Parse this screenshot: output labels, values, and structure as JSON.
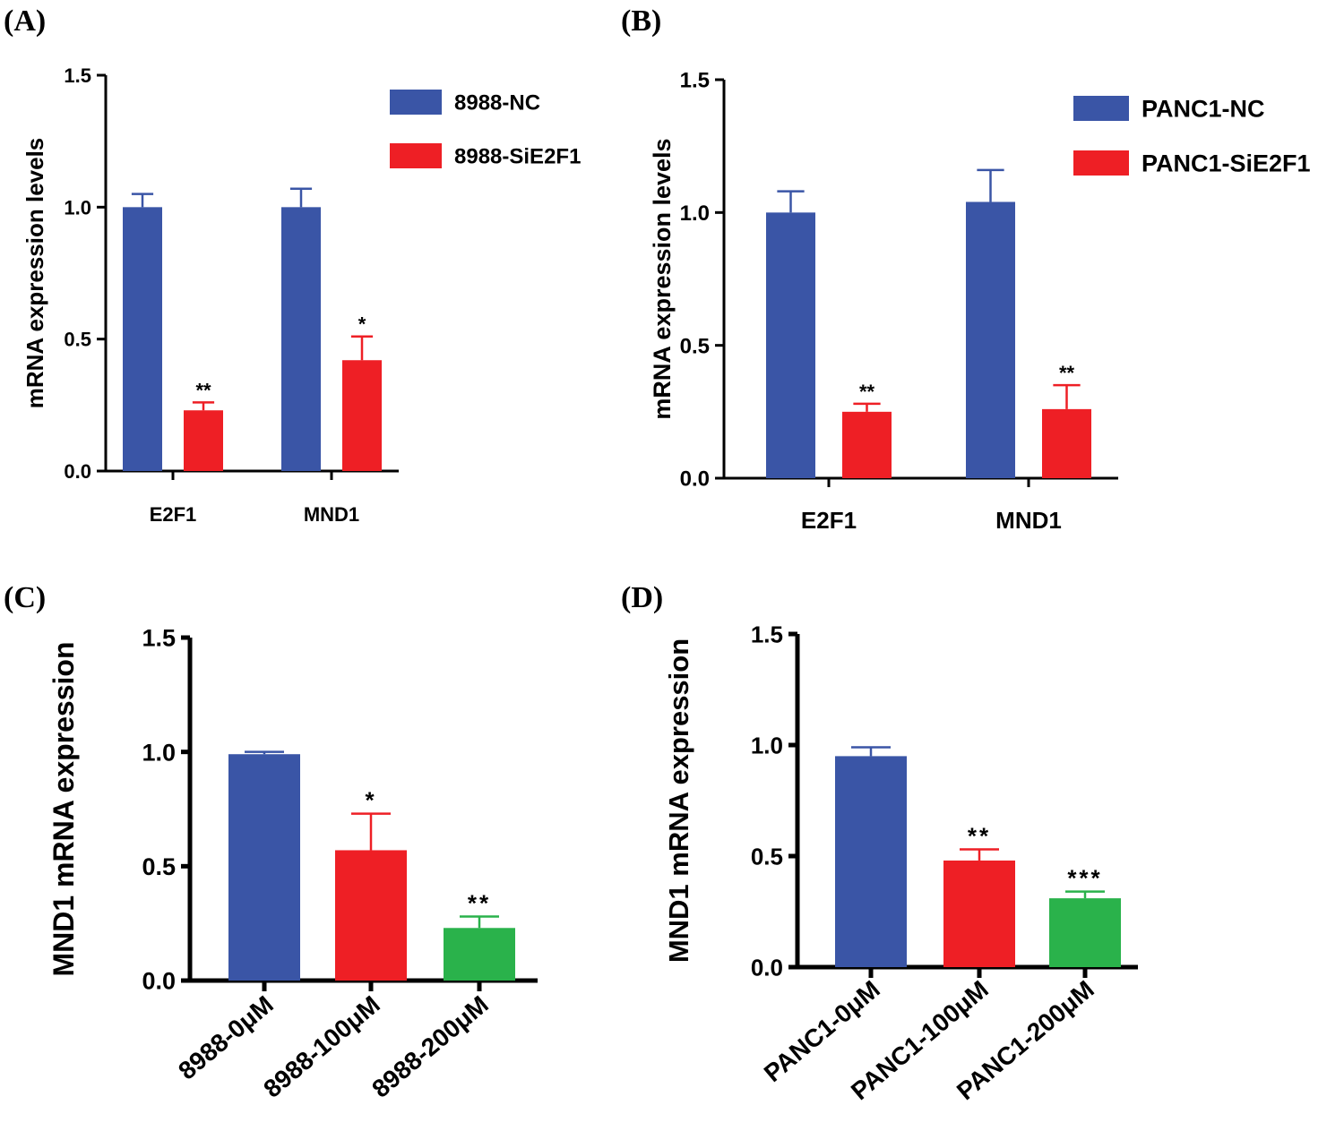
{
  "chart_data": [
    {
      "panel": "(A)",
      "type": "bar",
      "categories": [
        "E2F1",
        "MND1"
      ],
      "series": [
        {
          "name": "8988-NC",
          "color": "#3a55a6",
          "values": [
            1.0,
            1.0
          ],
          "errors": [
            0.05,
            0.07
          ]
        },
        {
          "name": "8988-SiE2F1",
          "color": "#ee1f25",
          "values": [
            0.23,
            0.42
          ],
          "errors": [
            0.03,
            0.09
          ]
        }
      ],
      "significance": [
        [
          "",
          ""
        ],
        [
          "**",
          "*"
        ]
      ],
      "ylabel": "mRNA expression levels",
      "xlabel": "",
      "ylim": [
        0,
        1.5
      ],
      "yticks": [
        "0.0",
        "0.5",
        "1.0",
        "1.5"
      ],
      "legend": "top-right"
    },
    {
      "panel": "(B)",
      "type": "bar",
      "categories": [
        "E2F1",
        "MND1"
      ],
      "series": [
        {
          "name": "PANC1-NC",
          "color": "#3a55a6",
          "values": [
            1.0,
            1.04
          ],
          "errors": [
            0.08,
            0.12
          ]
        },
        {
          "name": "PANC1-SiE2F1",
          "color": "#ee1f25",
          "values": [
            0.25,
            0.26
          ],
          "errors": [
            0.03,
            0.09
          ]
        }
      ],
      "significance": [
        [
          "",
          ""
        ],
        [
          "**",
          "**"
        ]
      ],
      "ylabel": "mRNA expression levels",
      "xlabel": "",
      "ylim": [
        0,
        1.5
      ],
      "yticks": [
        "0.0",
        "0.5",
        "1.0",
        "1.5"
      ],
      "legend": "top-right"
    },
    {
      "panel": "(C)",
      "type": "bar",
      "categories": [
        "8988-0μM",
        "8988-100μM",
        "8988-200μM"
      ],
      "values": [
        0.99,
        0.57,
        0.23
      ],
      "errors": [
        0.01,
        0.16,
        0.05
      ],
      "colors": [
        "#3a55a6",
        "#ee1f25",
        "#2ab24b"
      ],
      "significance": [
        "",
        "*",
        "**"
      ],
      "ylabel": "MND1 mRNA expression",
      "xlabel": "",
      "ylim": [
        0,
        1.5
      ],
      "yticks": [
        "0.0",
        "0.5",
        "1.0",
        "1.5"
      ]
    },
    {
      "panel": "(D)",
      "type": "bar",
      "categories": [
        "PANC1-0μM",
        "PANC1-100μM",
        "PANC1-200μM"
      ],
      "values": [
        0.95,
        0.48,
        0.31
      ],
      "errors": [
        0.04,
        0.05,
        0.03
      ],
      "colors": [
        "#3a55a6",
        "#ee1f25",
        "#2ab24b"
      ],
      "significance": [
        "",
        "**",
        "***"
      ],
      "ylabel": "MND1 mRNA expression",
      "xlabel": "",
      "ylim": [
        0,
        1.5
      ],
      "yticks": [
        "0.0",
        "0.5",
        "1.0",
        "1.5"
      ]
    }
  ]
}
